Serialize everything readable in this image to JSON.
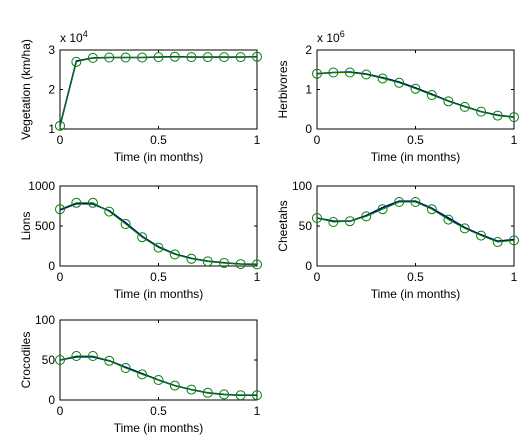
{
  "chart_data": [
    {
      "type": "line",
      "xlabel": "Time (in months)",
      "ylabel": "Vegetation (km/ha)",
      "exponent_label": "x 10",
      "exponent_power": "4",
      "xlim": [
        0,
        1
      ],
      "ylim": [
        1,
        3
      ],
      "xticks": [
        "0",
        "0.5",
        "1"
      ],
      "yticks": [
        "1",
        "2",
        "3"
      ],
      "x": [
        0,
        0.083,
        0.167,
        0.25,
        0.333,
        0.417,
        0.5,
        0.583,
        0.667,
        0.75,
        0.833,
        0.917,
        1
      ],
      "series": [
        {
          "values": [
            1.08,
            2.72,
            2.8,
            2.81,
            2.81,
            2.81,
            2.82,
            2.83,
            2.82,
            2.82,
            2.82,
            2.82,
            2.83
          ]
        },
        {
          "values": [
            1.08,
            2.7,
            2.8,
            2.81,
            2.81,
            2.81,
            2.82,
            2.83,
            2.82,
            2.82,
            2.82,
            2.82,
            2.83
          ]
        }
      ],
      "grid": false
    },
    {
      "type": "line",
      "xlabel": "Time (in months)",
      "ylabel": "Herbivores",
      "exponent_label": "x 10",
      "exponent_power": "6",
      "xlim": [
        0,
        1
      ],
      "ylim": [
        0,
        2
      ],
      "xticks": [
        "0",
        "0.5",
        "1"
      ],
      "yticks": [
        "0",
        "1",
        "2"
      ],
      "x": [
        0,
        0.083,
        0.167,
        0.25,
        0.333,
        0.417,
        0.5,
        0.583,
        0.667,
        0.75,
        0.833,
        0.917,
        1
      ],
      "series": [
        {
          "values": [
            1.4,
            1.43,
            1.44,
            1.39,
            1.3,
            1.19,
            1.04,
            0.88,
            0.71,
            0.57,
            0.44,
            0.35,
            0.3
          ]
        },
        {
          "values": [
            1.4,
            1.43,
            1.43,
            1.38,
            1.28,
            1.17,
            1.02,
            0.86,
            0.7,
            0.56,
            0.44,
            0.34,
            0.3
          ]
        }
      ],
      "grid": false
    },
    {
      "type": "line",
      "xlabel": "Time (in months)",
      "ylabel": "Lions",
      "xlim": [
        0,
        1
      ],
      "ylim": [
        0,
        1000
      ],
      "xticks": [
        "0",
        "0.5",
        "1"
      ],
      "yticks": [
        "0",
        "500",
        "1000"
      ],
      "x": [
        0,
        0.083,
        0.167,
        0.25,
        0.333,
        0.417,
        0.5,
        0.583,
        0.667,
        0.75,
        0.833,
        0.917,
        1
      ],
      "series": [
        {
          "values": [
            700,
            780,
            775,
            690,
            540,
            370,
            240,
            150,
            95,
            60,
            40,
            25,
            20
          ]
        },
        {
          "values": [
            710,
            790,
            790,
            680,
            525,
            360,
            230,
            145,
            90,
            58,
            38,
            24,
            20
          ]
        }
      ],
      "grid": false
    },
    {
      "type": "line",
      "xlabel": "Time (in months)",
      "ylabel": "Cheetahs",
      "xlim": [
        0,
        1
      ],
      "ylim": [
        0,
        100
      ],
      "xticks": [
        "0",
        "0.5",
        "1"
      ],
      "yticks": [
        "0",
        "50",
        "100"
      ],
      "x": [
        0,
        0.083,
        0.167,
        0.25,
        0.333,
        0.417,
        0.5,
        0.583,
        0.667,
        0.75,
        0.833,
        0.917,
        1
      ],
      "series": [
        {
          "values": [
            60,
            56,
            56,
            63,
            73,
            81,
            81,
            72,
            60,
            48,
            39,
            31,
            33
          ]
        },
        {
          "values": [
            60,
            55,
            56,
            62,
            71,
            80,
            80,
            71,
            58,
            47,
            38,
            30,
            32
          ]
        }
      ],
      "grid": false
    },
    {
      "type": "line",
      "xlabel": "Time (in months)",
      "ylabel": "Crocodiles",
      "xlim": [
        0,
        1
      ],
      "ylim": [
        0,
        100
      ],
      "xticks": [
        "0",
        "0.5",
        "1"
      ],
      "yticks": [
        "0",
        "50",
        "100"
      ],
      "x": [
        0,
        0.083,
        0.167,
        0.25,
        0.333,
        0.417,
        0.5,
        0.583,
        0.667,
        0.75,
        0.833,
        0.917,
        1
      ],
      "series": [
        {
          "values": [
            50,
            54,
            54,
            49,
            41,
            33,
            25,
            18,
            13,
            9,
            7,
            6,
            6
          ]
        },
        {
          "values": [
            50,
            55,
            55,
            49,
            40,
            32,
            25,
            18,
            13,
            9,
            7,
            6,
            6
          ]
        }
      ],
      "grid": false
    }
  ],
  "colors": {
    "line_primary": "#00008f",
    "line_secondary": "#008000",
    "marker": "#008000",
    "axes": "#000000",
    "background": "#ffffff"
  }
}
